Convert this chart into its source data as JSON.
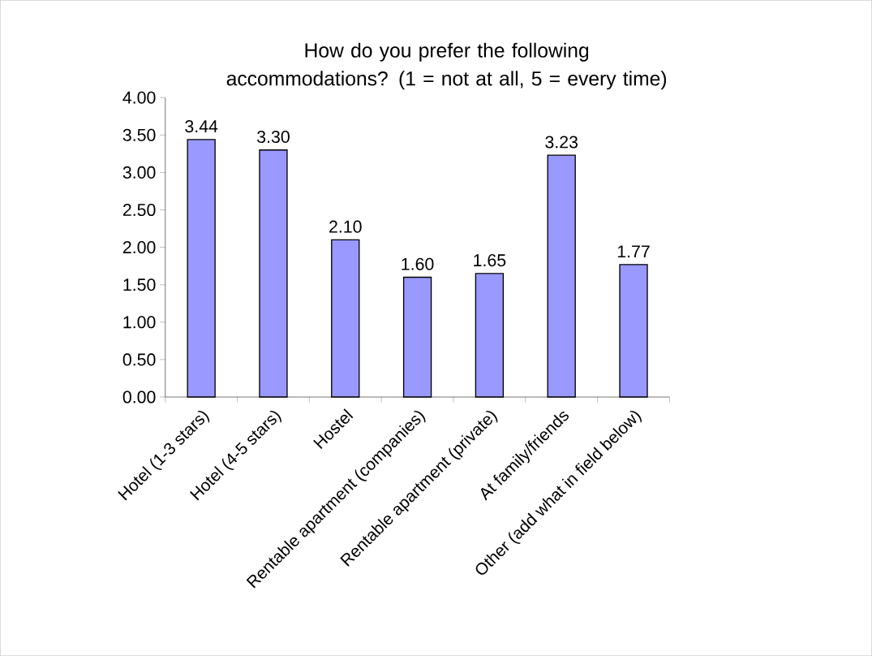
{
  "chart_data": {
    "type": "bar",
    "title": "How do you prefer the following accommodations? (1 = not at all, 5 = every time)",
    "categories": [
      "Hotel (1-3 stars)",
      "Hotel (4-5 stars)",
      "Hostel",
      "Rentable apartment (companies)",
      "Rentable apartment (private)",
      "At family/friends",
      "Other (add what in field below)"
    ],
    "values": [
      3.44,
      3.3,
      2.1,
      1.6,
      1.65,
      3.23,
      1.77
    ],
    "value_labels": [
      "3.44",
      "3.30",
      "2.10",
      "1.60",
      "1.65",
      "3.23",
      "1.77"
    ],
    "color": "#9999ff",
    "ylim": [
      0,
      4
    ],
    "yticks": [
      {
        "value": 0,
        "label": "0.00"
      },
      {
        "value": 0.5,
        "label": "0.50"
      },
      {
        "value": 1,
        "label": "1.00"
      },
      {
        "value": 1.5,
        "label": "1.50"
      },
      {
        "value": 2,
        "label": "2.00"
      },
      {
        "value": 2.5,
        "label": "2.50"
      },
      {
        "value": 3,
        "label": "3.00"
      },
      {
        "value": 3.5,
        "label": "3.50"
      },
      {
        "value": 4,
        "label": "4.00"
      }
    ],
    "grid": false
  }
}
